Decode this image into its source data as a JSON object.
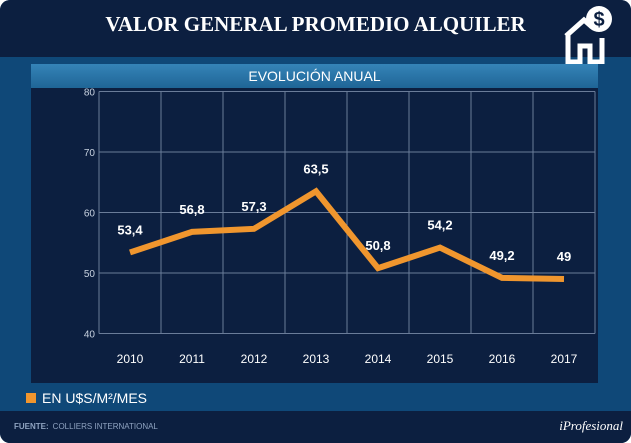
{
  "header": {
    "title": "VALOR GENERAL PROMEDIO ALQUILER"
  },
  "chart_data": {
    "type": "line",
    "title": "EVOLUCIÓN ANUAL",
    "categories": [
      "2010",
      "2011",
      "2012",
      "2013",
      "2014",
      "2015",
      "2016",
      "2017"
    ],
    "series": [
      {
        "name": "EN U$S/M²/MES",
        "values": [
          53.4,
          56.8,
          57.3,
          63.5,
          50.8,
          54.2,
          49.2,
          49
        ],
        "labels": [
          "53,4",
          "56,8",
          "57,3",
          "63,5",
          "50,8",
          "54,2",
          "49,2",
          "49"
        ],
        "color": "#f0962e"
      }
    ],
    "ylim": [
      40,
      80
    ],
    "yticks": [
      "40",
      "50",
      "60",
      "70",
      "80"
    ],
    "grid": true,
    "legend": "bottom-left"
  },
  "footer": {
    "source_label": "FUENTE:",
    "source": "COLLIERS INTERNATIONAL",
    "brand": "iProfesional"
  }
}
